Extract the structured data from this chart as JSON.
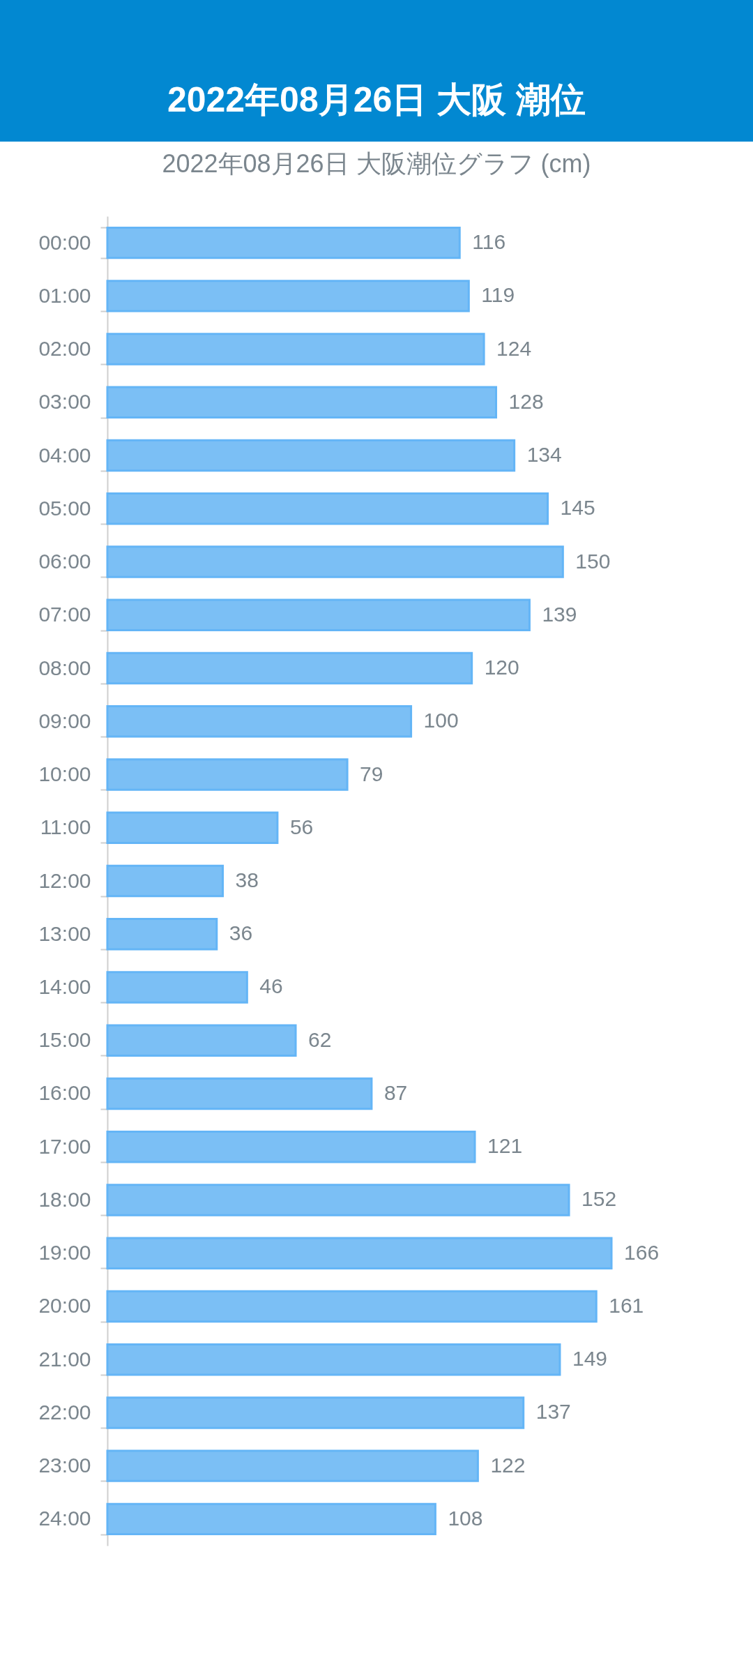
{
  "chart_data": {
    "type": "bar",
    "orientation": "horizontal",
    "title": "2022年08月26日 大阪 潮位",
    "subtitle": "2022年08月26日 大阪潮位グラフ (cm)",
    "categories": [
      "00:00",
      "01:00",
      "02:00",
      "03:00",
      "04:00",
      "05:00",
      "06:00",
      "07:00",
      "08:00",
      "09:00",
      "10:00",
      "11:00",
      "12:00",
      "13:00",
      "14:00",
      "15:00",
      "16:00",
      "17:00",
      "18:00",
      "19:00",
      "20:00",
      "21:00",
      "22:00",
      "23:00",
      "24:00"
    ],
    "values": [
      116,
      119,
      124,
      128,
      134,
      145,
      150,
      139,
      120,
      100,
      79,
      56,
      38,
      36,
      46,
      62,
      87,
      121,
      152,
      166,
      161,
      149,
      137,
      122,
      108
    ],
    "color": "#7bbff5",
    "data_labels": true
  }
}
